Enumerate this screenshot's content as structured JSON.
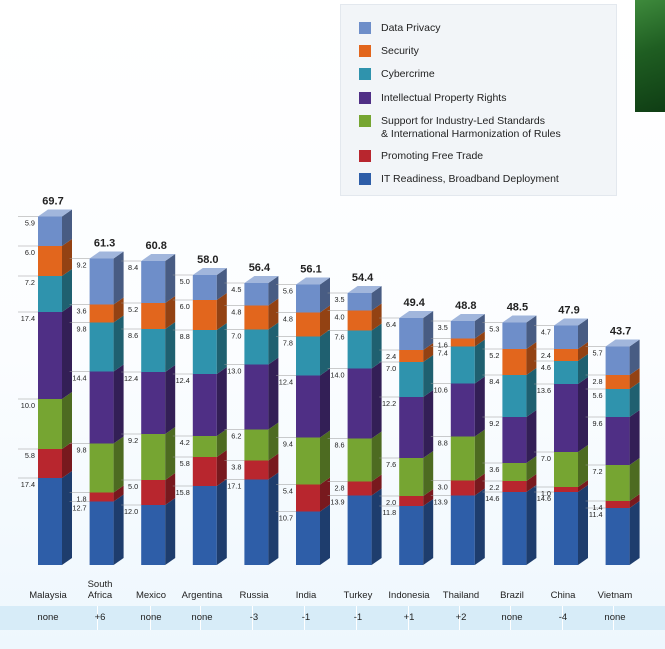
{
  "legend": {
    "items": [
      {
        "label": "Data Privacy",
        "color": "#6e8ec9"
      },
      {
        "label": "Security",
        "color": "#e2661d"
      },
      {
        "label": "Cybercrime",
        "color": "#2f93ad"
      },
      {
        "label": "Intellectual Property Rights",
        "color": "#4f2f85"
      },
      {
        "label": "Support for Industry-Led Standards\n& International Harmonization of Rules",
        "color": "#76a532"
      },
      {
        "label": "Promoting Free Trade",
        "color": "#b8262e"
      },
      {
        "label": "IT Readiness, Broadband Deployment",
        "color": "#2e5ea8"
      }
    ]
  },
  "chart_data": {
    "type": "bar",
    "stacked": true,
    "title": "",
    "ylim": [
      0,
      70
    ],
    "categories": [
      "Malaysia",
      "South Africa",
      "Mexico",
      "Argentina",
      "Russia",
      "India",
      "Turkey",
      "Indonesia",
      "Thailand",
      "Brazil",
      "China",
      "Vietnam"
    ],
    "totals": [
      "69.7",
      "61.3",
      "60.8",
      "58.0",
      "56.4",
      "56.1",
      "54.4",
      "49.4",
      "48.8",
      "48.5",
      "47.9",
      "43.7"
    ],
    "series": [
      {
        "name": "IT Readiness, Broadband Deployment",
        "color": "#2e5ea8",
        "values": [
          17.4,
          12.7,
          12.0,
          15.8,
          17.1,
          10.7,
          13.9,
          11.8,
          13.9,
          14.6,
          14.6,
          11.4
        ]
      },
      {
        "name": "Promoting Free Trade",
        "color": "#b8262e",
        "values": [
          5.8,
          1.8,
          5.0,
          5.8,
          3.8,
          5.4,
          2.8,
          2.0,
          3.0,
          2.2,
          1.0,
          1.4
        ]
      },
      {
        "name": "Support for Industry-Led Standards & International Harmonization of Rules",
        "color": "#76a532",
        "values": [
          10.0,
          9.8,
          9.2,
          4.2,
          6.2,
          9.4,
          8.6,
          7.6,
          8.8,
          3.6,
          7.0,
          7.2
        ]
      },
      {
        "name": "Intellectual Property Rights",
        "color": "#4f2f85",
        "values": [
          17.4,
          14.4,
          12.4,
          12.4,
          13.0,
          12.4,
          14.0,
          12.2,
          10.6,
          9.2,
          13.6,
          9.6
        ]
      },
      {
        "name": "Cybercrime",
        "color": "#2f93ad",
        "values": [
          7.2,
          9.8,
          8.6,
          8.8,
          7.0,
          7.8,
          7.6,
          7.0,
          7.4,
          8.4,
          4.6,
          5.6
        ]
      },
      {
        "name": "Security",
        "color": "#e2661d",
        "values": [
          6.0,
          3.6,
          5.2,
          6.0,
          4.8,
          4.8,
          4.0,
          2.4,
          1.6,
          5.2,
          2.4,
          2.8
        ]
      },
      {
        "name": "Data Privacy",
        "color": "#6e8ec9",
        "values": [
          5.9,
          9.2,
          8.4,
          5.0,
          4.5,
          5.6,
          3.5,
          6.4,
          3.5,
          5.3,
          4.7,
          5.7
        ]
      }
    ],
    "segment_labels": [
      [
        "17.4",
        "5.8",
        "10.0",
        "17.4",
        "7.2",
        "6.0",
        "5.9"
      ],
      [
        "12.7",
        "1.8",
        "9.8",
        "14.4",
        "9.8",
        "3.6",
        "9.2"
      ],
      [
        "12.0",
        "5.0",
        "9.2",
        "12.4",
        "8.6",
        "5.2",
        "8.4"
      ],
      [
        "15.8",
        "5.8",
        "4.2",
        "12.4",
        "8.8",
        "6.0",
        "5.0"
      ],
      [
        "17.1",
        "3.8",
        "6.2",
        "13.0",
        "7.0",
        "4.8",
        "4.5"
      ],
      [
        "10.7",
        "5.4",
        "9.4",
        "12.4",
        "7.8",
        "4.8",
        "5.6"
      ],
      [
        "13.9",
        "2.8",
        "8.6",
        "14.0",
        "7.6",
        "4.0",
        "3.5"
      ],
      [
        "11.8",
        "2.0",
        "7.6",
        "12.2",
        "7.0",
        "2.4",
        "6.4"
      ],
      [
        "13.9",
        "3.0",
        "8.8",
        "10.6",
        "7.4",
        "1.6",
        "3.5"
      ],
      [
        "14.6",
        "2.2",
        "3.6",
        "9.2",
        "8.4",
        "5.2",
        "5.3"
      ],
      [
        "14.6",
        "1.0",
        "7.0",
        "13.6",
        "4.6",
        "2.4",
        "4.7"
      ],
      [
        "11.4",
        "1.4",
        "7.2",
        "9.6",
        "5.6",
        "2.8",
        "5.7"
      ]
    ],
    "rank_changes": [
      "none",
      "+6",
      "none",
      "none",
      "-3",
      "-1",
      "-1",
      "+1",
      "+2",
      "none",
      "-4",
      "none"
    ]
  },
  "country_labels": [
    "Malaysia",
    "South\nAfrica",
    "Mexico",
    "Argentina",
    "Russia",
    "India",
    "Turkey",
    "Indonesia",
    "Thailand",
    "Brazil",
    "China",
    "Vietnam"
  ]
}
